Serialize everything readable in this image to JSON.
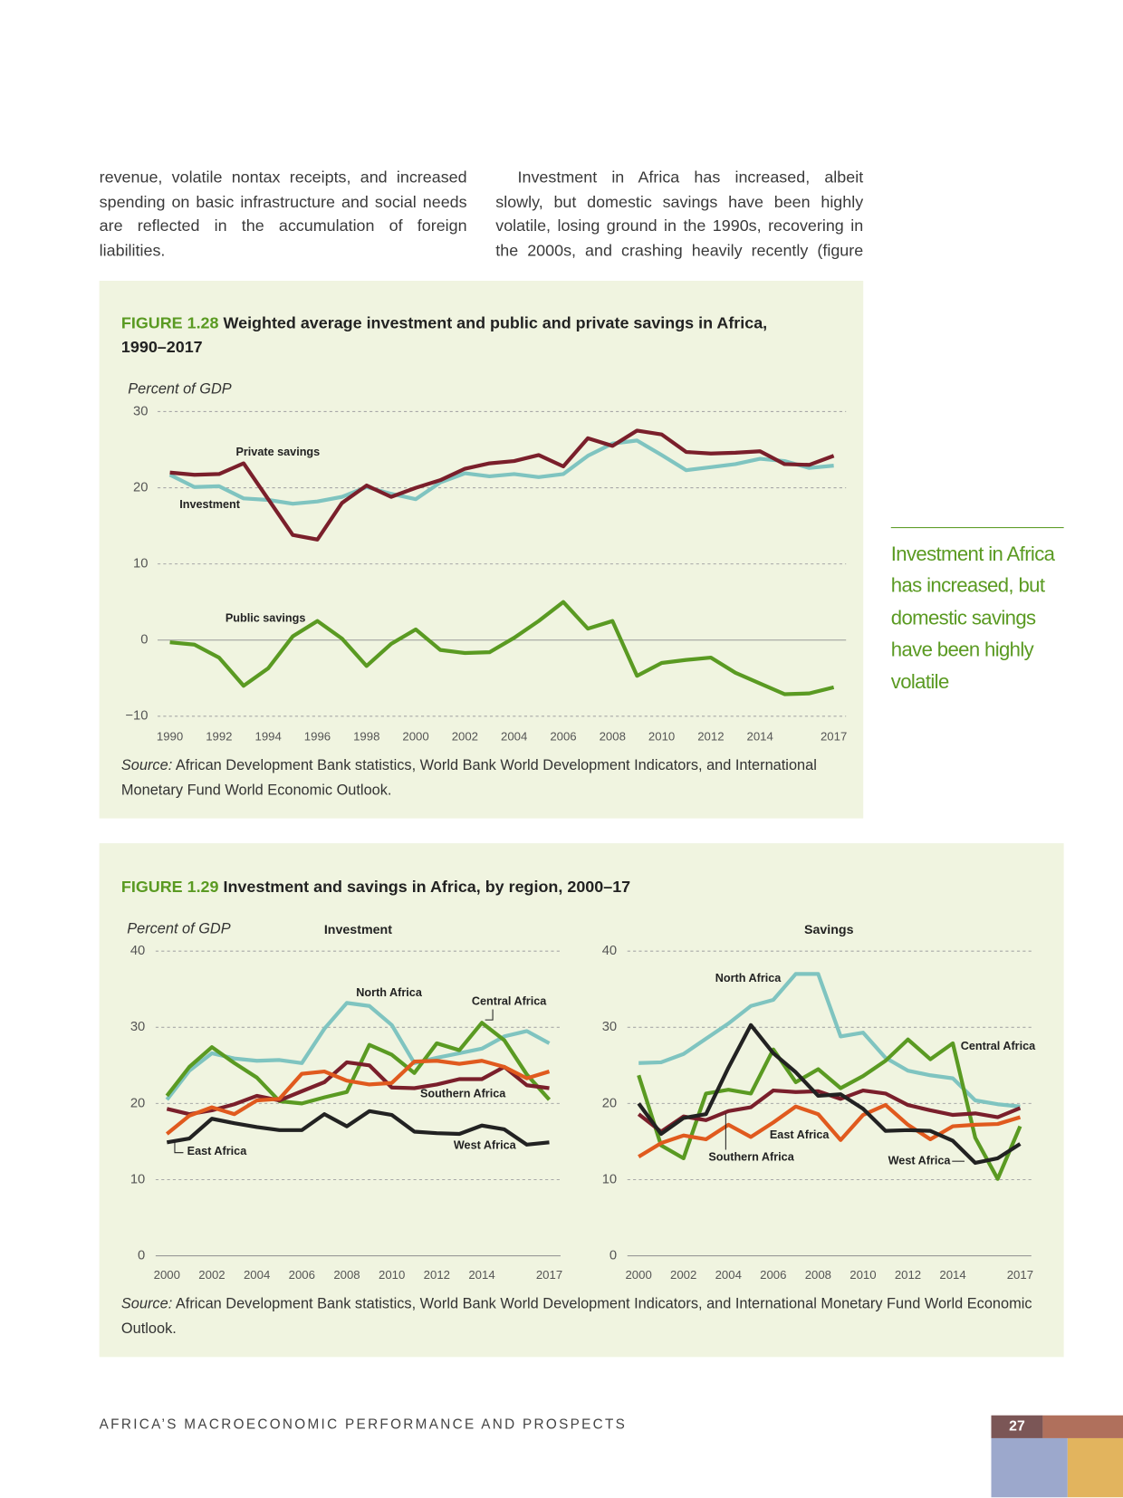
{
  "page": {
    "body_left": "revenue, volatile nontax receipts, and increased spending on basic infrastructure and social needs are reflected in the accumulation of foreign liabilities.",
    "body_right": "Investment in Africa has increased, albeit slowly, but domestic savings have been highly volatile, losing ground in the 1990s, recovering in the 2000s, and crashing heavily recently (figure",
    "figures": [
      {
        "label": "FIGURE 1.28",
        "title": "Weighted average investment and public and private savings in Africa, 1990–2017",
        "source_label": "Source:",
        "source": "African Development Bank statistics, World Bank World Development Indicators, and International Monetary Fund World Economic Outlook."
      },
      {
        "label": "FIGURE 1.29",
        "title": "Investment and savings in Africa, by region, 2000–17",
        "source_label": "Source:",
        "source": "African Development Bank statistics, World Bank World Development Indicators, and International Monetary Fund World Economic Outlook."
      }
    ],
    "pull_quote": "Investment in Africa has increased, but domestic savings have been highly volatile",
    "footer": "AFRICA’S MACROECONOMIC PERFORMANCE AND PROSPECTS",
    "page_number": "27"
  },
  "chart_data": [
    {
      "type": "line",
      "y_label": "Percent of GDP",
      "x": [
        1990,
        1991,
        1992,
        1993,
        1994,
        1995,
        1996,
        1997,
        1998,
        1999,
        2000,
        2001,
        2002,
        2003,
        2004,
        2005,
        2006,
        2007,
        2008,
        2009,
        2010,
        2011,
        2012,
        2013,
        2014,
        2015,
        2016,
        2017
      ],
      "xlim": [
        1989.5,
        2017.5
      ],
      "xticks": [
        1990,
        1992,
        1994,
        1996,
        1998,
        2000,
        2002,
        2004,
        2006,
        2008,
        2010,
        2012,
        2014,
        2017
      ],
      "ylim": [
        -10,
        30
      ],
      "yticks": [
        {
          "value": -10,
          "label": "−10"
        },
        0,
        10,
        20,
        30
      ],
      "grid": true,
      "series": [
        {
          "name": "Investment",
          "color": "#7fc4c0",
          "values": [
            21.7,
            20.1,
            20.2,
            18.6,
            18.4,
            17.9,
            18.2,
            18.8,
            20.1,
            19.2,
            18.5,
            20.7,
            21.9,
            21.5,
            21.8,
            21.4,
            21.8,
            24.2,
            25.8,
            26.2,
            24.3,
            22.3,
            22.7,
            23.1,
            23.8,
            23.5,
            22.6,
            22.9
          ]
        },
        {
          "name": "Private savings",
          "color": "#7a1f2b",
          "values": [
            22,
            21.7,
            21.8,
            23.2,
            18.5,
            13.8,
            13.2,
            18,
            20.3,
            18.8,
            20,
            21,
            22.5,
            23.2,
            23.5,
            24.3,
            22.8,
            26.5,
            25.5,
            27.5,
            27,
            24.7,
            24.5,
            24.6,
            24.8,
            23.1,
            23,
            24.2
          ]
        },
        {
          "name": "Public savings",
          "color": "#5a9a22",
          "values": [
            -0.3,
            -0.6,
            -2.3,
            -6,
            -3.7,
            0.5,
            2.5,
            0.2,
            -3.4,
            -0.5,
            1.4,
            -1.3,
            -1.7,
            -1.6,
            0.3,
            2.5,
            5,
            1.5,
            2.5,
            -4.7,
            -3,
            -2.6,
            -2.3,
            -4.3,
            -5.7,
            -7.1,
            -7,
            -6.2
          ]
        }
      ]
    },
    {
      "type": "line",
      "title": "Investment",
      "y_label": "Percent of GDP",
      "x": [
        2000,
        2001,
        2002,
        2003,
        2004,
        2005,
        2006,
        2007,
        2008,
        2009,
        2010,
        2011,
        2012,
        2013,
        2014,
        2015,
        2016,
        2017
      ],
      "xlim": [
        1999.5,
        2017.5
      ],
      "xticks": [
        2000,
        2002,
        2004,
        2006,
        2008,
        2010,
        2012,
        2014,
        2017
      ],
      "ylim": [
        0,
        40
      ],
      "yticks": [
        0,
        10,
        20,
        30,
        40
      ],
      "grid": true,
      "series": [
        {
          "name": "North Africa",
          "color": "#7fc4c0",
          "values": [
            20.5,
            24.3,
            26.6,
            25.9,
            25.6,
            25.7,
            25.3,
            29.8,
            33.2,
            32.8,
            30.3,
            25.3,
            26,
            26.6,
            27.2,
            28.8,
            29.5,
            27.9
          ]
        },
        {
          "name": "Central Africa",
          "color": "#5a9a22",
          "values": [
            21,
            24.8,
            27.4,
            25.3,
            23.4,
            20.3,
            20,
            20.8,
            21.5,
            27.7,
            26.4,
            24,
            27.9,
            27,
            30.6,
            28.3,
            23.8,
            20.5
          ]
        },
        {
          "name": "Southern Africa",
          "color": "#7a1f2b",
          "values": [
            19.3,
            18.6,
            19.1,
            19.9,
            21,
            20.4,
            21.6,
            22.8,
            25.4,
            25,
            22.1,
            22,
            22.5,
            23.2,
            23.2,
            24.8,
            22.4,
            22
          ]
        },
        {
          "name": "East Africa",
          "color": "#e05a1e",
          "values": [
            16,
            18.4,
            19.5,
            18.6,
            20.4,
            20.6,
            23.9,
            24.2,
            23,
            22.5,
            22.7,
            25.5,
            25.6,
            25.2,
            25.6,
            24.8,
            23.3,
            24.2
          ]
        },
        {
          "name": "West Africa",
          "color": "#222222",
          "values": [
            14.9,
            15.4,
            18,
            17.4,
            16.9,
            16.5,
            16.5,
            18.6,
            17,
            19,
            18.5,
            16.3,
            16.1,
            16,
            17.1,
            16.6,
            14.6,
            14.9
          ]
        }
      ]
    },
    {
      "type": "line",
      "title": "Savings",
      "x": [
        2000,
        2001,
        2002,
        2003,
        2004,
        2005,
        2006,
        2007,
        2008,
        2009,
        2010,
        2011,
        2012,
        2013,
        2014,
        2015,
        2016,
        2017
      ],
      "xlim": [
        1999.5,
        2017.5
      ],
      "xticks": [
        2000,
        2002,
        2004,
        2006,
        2008,
        2010,
        2012,
        2014,
        2017
      ],
      "ylim": [
        0,
        40
      ],
      "yticks": [
        0,
        10,
        20,
        30,
        40
      ],
      "grid": true,
      "series": [
        {
          "name": "North Africa",
          "color": "#7fc4c0",
          "values": [
            25.3,
            25.4,
            26.5,
            28.5,
            30.5,
            32.8,
            33.6,
            37,
            37,
            28.8,
            29.3,
            26,
            24.3,
            23.7,
            23.3,
            20.4,
            19.9,
            19.6
          ]
        },
        {
          "name": "Central Africa",
          "color": "#5a9a22",
          "values": [
            23.7,
            14.5,
            12.8,
            21.3,
            21.8,
            21.3,
            27.1,
            22.8,
            24.5,
            22,
            23.6,
            25.6,
            28.4,
            25.8,
            27.9,
            15.5,
            10.1,
            17
          ]
        },
        {
          "name": "Southern Africa",
          "color": "#7a1f2b",
          "values": [
            18.6,
            16.3,
            18.3,
            17.8,
            19,
            19.5,
            21.7,
            21.5,
            21.6,
            20.6,
            21.7,
            21.3,
            19.8,
            19.1,
            18.5,
            18.7,
            18.2,
            19.4
          ]
        },
        {
          "name": "East Africa",
          "color": "#e05a1e",
          "values": [
            13,
            14.8,
            15.8,
            15.3,
            17.2,
            15.6,
            17.5,
            19.6,
            18.6,
            15.2,
            18.5,
            19.8,
            17.2,
            15.3,
            17,
            17.2,
            17.3,
            18.2
          ]
        },
        {
          "name": "West Africa",
          "color": "#222222",
          "values": [
            20,
            16,
            18.1,
            18.6,
            24.7,
            30.3,
            26.6,
            24.1,
            21,
            21.2,
            19.3,
            16.4,
            16.5,
            16.4,
            15.1,
            12.2,
            12.8,
            14.7
          ]
        }
      ]
    }
  ]
}
